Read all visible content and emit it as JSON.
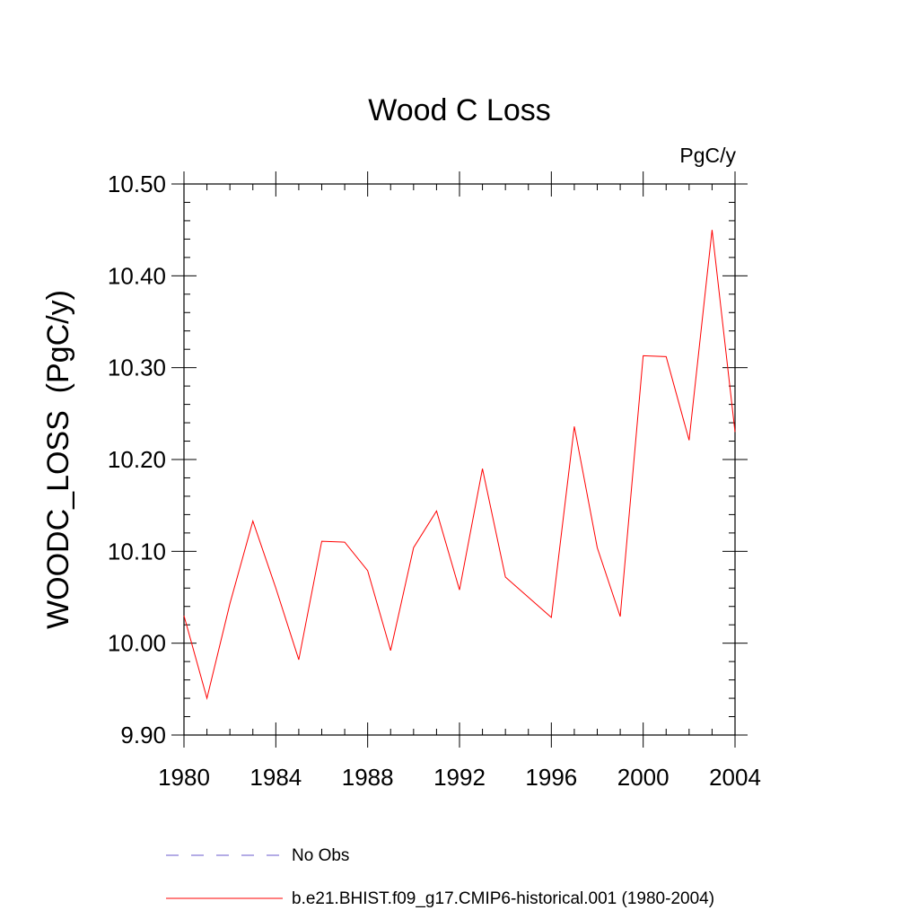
{
  "chart_data": {
    "type": "line",
    "title": "Wood C Loss",
    "units_label": "PgC/y",
    "xlabel": "",
    "ylabel": "WOODC_LOSS  (PgC/y)",
    "xlim": [
      1980,
      2004
    ],
    "ylim": [
      9.9,
      10.5
    ],
    "x_ticks": [
      1980,
      1984,
      1988,
      1992,
      1996,
      2000,
      2004
    ],
    "x_tick_labels": [
      "1980",
      "1984",
      "1988",
      "1992",
      "1996",
      "2000",
      "2004"
    ],
    "y_ticks": [
      9.9,
      10.0,
      10.1,
      10.2,
      10.3,
      10.4,
      10.5
    ],
    "y_tick_labels": [
      "9.90",
      "10.00",
      "10.10",
      "10.20",
      "10.30",
      "10.40",
      "10.50"
    ],
    "grid": false,
    "legend_position": "bottom",
    "series": [
      {
        "name": "b.e21.BHIST.f09_g17.CMIP6-historical.001 (1980-2004)",
        "color": "#ff0000",
        "style": "solid",
        "x": [
          1980,
          1981,
          1982,
          1983,
          1984,
          1985,
          1986,
          1987,
          1988,
          1989,
          1990,
          1991,
          1992,
          1993,
          1994,
          1995,
          1996,
          1997,
          1998,
          1999,
          2000,
          2001,
          2002,
          2003,
          2004
        ],
        "values": [
          10.03,
          9.94,
          10.043,
          10.133,
          10.06,
          9.982,
          10.111,
          10.11,
          10.079,
          9.992,
          10.104,
          10.144,
          10.058,
          10.19,
          10.072,
          10.05,
          10.028,
          10.236,
          10.104,
          10.029,
          10.313,
          10.312,
          10.221,
          10.45,
          10.23
        ]
      }
    ],
    "legend": [
      {
        "label": "No Obs",
        "color": "#6a5acd",
        "style": "dashed"
      },
      {
        "label": "b.e21.BHIST.f09_g17.CMIP6-historical.001 (1980-2004)",
        "color": "#ff0000",
        "style": "solid"
      }
    ]
  }
}
